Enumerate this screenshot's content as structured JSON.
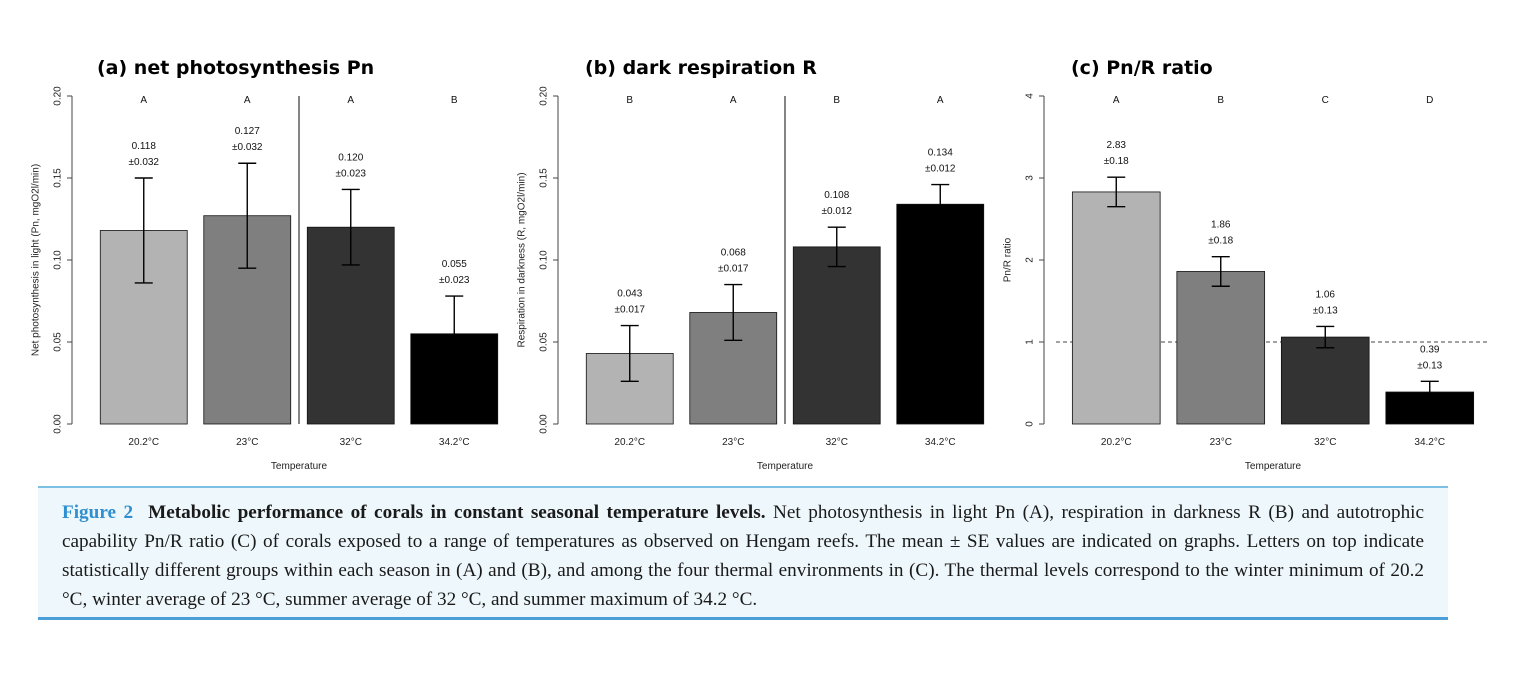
{
  "chart_data": [
    {
      "type": "bar",
      "title": "(a) net photosynthesis Pn",
      "xlabel": "Temperature",
      "ylabel": "Net photosynthesis in light (Pn, mgO2l/min)",
      "ylim": [
        0,
        0.2
      ],
      "yticks": [
        "0.00",
        "0.05",
        "0.10",
        "0.15",
        "0.20"
      ],
      "categories": [
        "20.2°C",
        "23°C",
        "32°C",
        "34.2°C"
      ],
      "values": [
        0.118,
        0.127,
        0.12,
        0.055
      ],
      "errors": [
        0.032,
        0.032,
        0.023,
        0.023
      ],
      "value_labels": [
        "0.118",
        "0.127",
        "0.120",
        "0.055"
      ],
      "error_labels": [
        "±0.032",
        "±0.032",
        "±0.023",
        "±0.023"
      ],
      "letters": [
        "A",
        "A",
        "A",
        "B"
      ],
      "colors": [
        "#b3b3b3",
        "#7f7f7f",
        "#333333",
        "#000000"
      ],
      "separator_after_index": 1
    },
    {
      "type": "bar",
      "title": "(b) dark respiration R",
      "xlabel": "Temperature",
      "ylabel": "Respiration in darkness (R, mgO2l/min)",
      "ylim": [
        0,
        0.2
      ],
      "yticks": [
        "0.00",
        "0.05",
        "0.10",
        "0.15",
        "0.20"
      ],
      "categories": [
        "20.2°C",
        "23°C",
        "32°C",
        "34.2°C"
      ],
      "values": [
        0.043,
        0.068,
        0.108,
        0.134
      ],
      "errors": [
        0.017,
        0.017,
        0.012,
        0.012
      ],
      "value_labels": [
        "0.043",
        "0.068",
        "0.108",
        "0.134"
      ],
      "error_labels": [
        "±0.017",
        "±0.017",
        "±0.012",
        "±0.012"
      ],
      "letters": [
        "B",
        "A",
        "B",
        "A"
      ],
      "colors": [
        "#b3b3b3",
        "#7f7f7f",
        "#333333",
        "#000000"
      ],
      "separator_after_index": 1
    },
    {
      "type": "bar",
      "title": "(c) Pn/R ratio",
      "xlabel": "Temperature",
      "ylabel": "Pn/R ratio",
      "ylim": [
        0,
        4
      ],
      "yticks": [
        "0",
        "1",
        "2",
        "3",
        "4"
      ],
      "categories": [
        "20.2°C",
        "23°C",
        "32°C",
        "34.2°C"
      ],
      "values": [
        2.83,
        1.86,
        1.06,
        0.39
      ],
      "errors": [
        0.18,
        0.18,
        0.13,
        0.13
      ],
      "value_labels": [
        "2.83",
        "1.86",
        "1.06",
        "0.39"
      ],
      "error_labels": [
        "±0.18",
        "±0.18",
        "±0.13",
        "±0.13"
      ],
      "letters": [
        "A",
        "B",
        "C",
        "D"
      ],
      "colors": [
        "#b3b3b3",
        "#7f7f7f",
        "#333333",
        "#000000"
      ],
      "reference_line": 1
    }
  ],
  "caption": {
    "label": "Figure 2",
    "heading": "Metabolic performance of corals in constant seasonal temperature levels.",
    "body": "Net photosynthesis in light Pn (A), respiration in darkness R (B) and autotrophic capability Pn/R ratio (C) of corals exposed to a range of temperatures as observed on Hengam reefs. The mean ± SE values are indicated on graphs. Letters on top indicate statistically different groups within each season in (A) and (B), and among the four thermal environments in (C). The thermal levels correspond to the winter minimum of 20.2 °C, winter average of 23 °C, summer average of 32 °C, and summer maximum of 34.2 °C."
  }
}
